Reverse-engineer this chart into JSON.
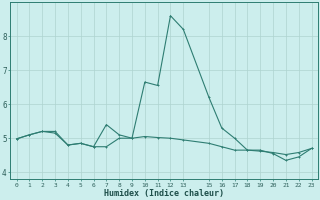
{
  "xlabel": "Humidex (Indice chaleur)",
  "ylabel": "",
  "bg_color": "#cceeed",
  "line_color": "#2e7d72",
  "grid_color": "#aed4d0",
  "x_ticks": [
    0,
    1,
    2,
    3,
    4,
    5,
    6,
    7,
    8,
    9,
    10,
    11,
    12,
    13,
    15,
    16,
    17,
    18,
    19,
    20,
    21,
    22,
    23
  ],
  "series1_x": [
    0,
    1,
    2,
    3,
    4,
    5,
    6,
    7,
    8,
    9,
    10,
    11,
    12,
    13,
    15,
    16,
    17,
    18,
    19,
    20,
    21,
    22,
    23
  ],
  "series1_y": [
    4.98,
    5.1,
    5.2,
    5.15,
    4.8,
    4.85,
    4.75,
    4.75,
    5.0,
    5.0,
    5.05,
    5.02,
    5.0,
    4.95,
    4.85,
    4.75,
    4.65,
    4.65,
    4.62,
    4.58,
    4.52,
    4.58,
    4.7
  ],
  "series2_x": [
    0,
    1,
    2,
    3,
    4,
    5,
    6,
    7,
    8,
    9,
    10,
    11,
    12,
    13,
    15,
    16,
    17,
    18,
    19,
    20,
    21,
    22,
    23
  ],
  "series2_y": [
    4.98,
    5.1,
    5.2,
    5.2,
    4.8,
    4.85,
    4.75,
    5.4,
    5.1,
    5.0,
    6.65,
    6.55,
    8.6,
    8.2,
    6.2,
    5.3,
    5.0,
    4.65,
    4.65,
    4.55,
    4.35,
    4.45,
    4.7
  ],
  "ylim": [
    3.8,
    9.0
  ],
  "yticks": [
    4,
    5,
    6,
    7,
    8
  ]
}
